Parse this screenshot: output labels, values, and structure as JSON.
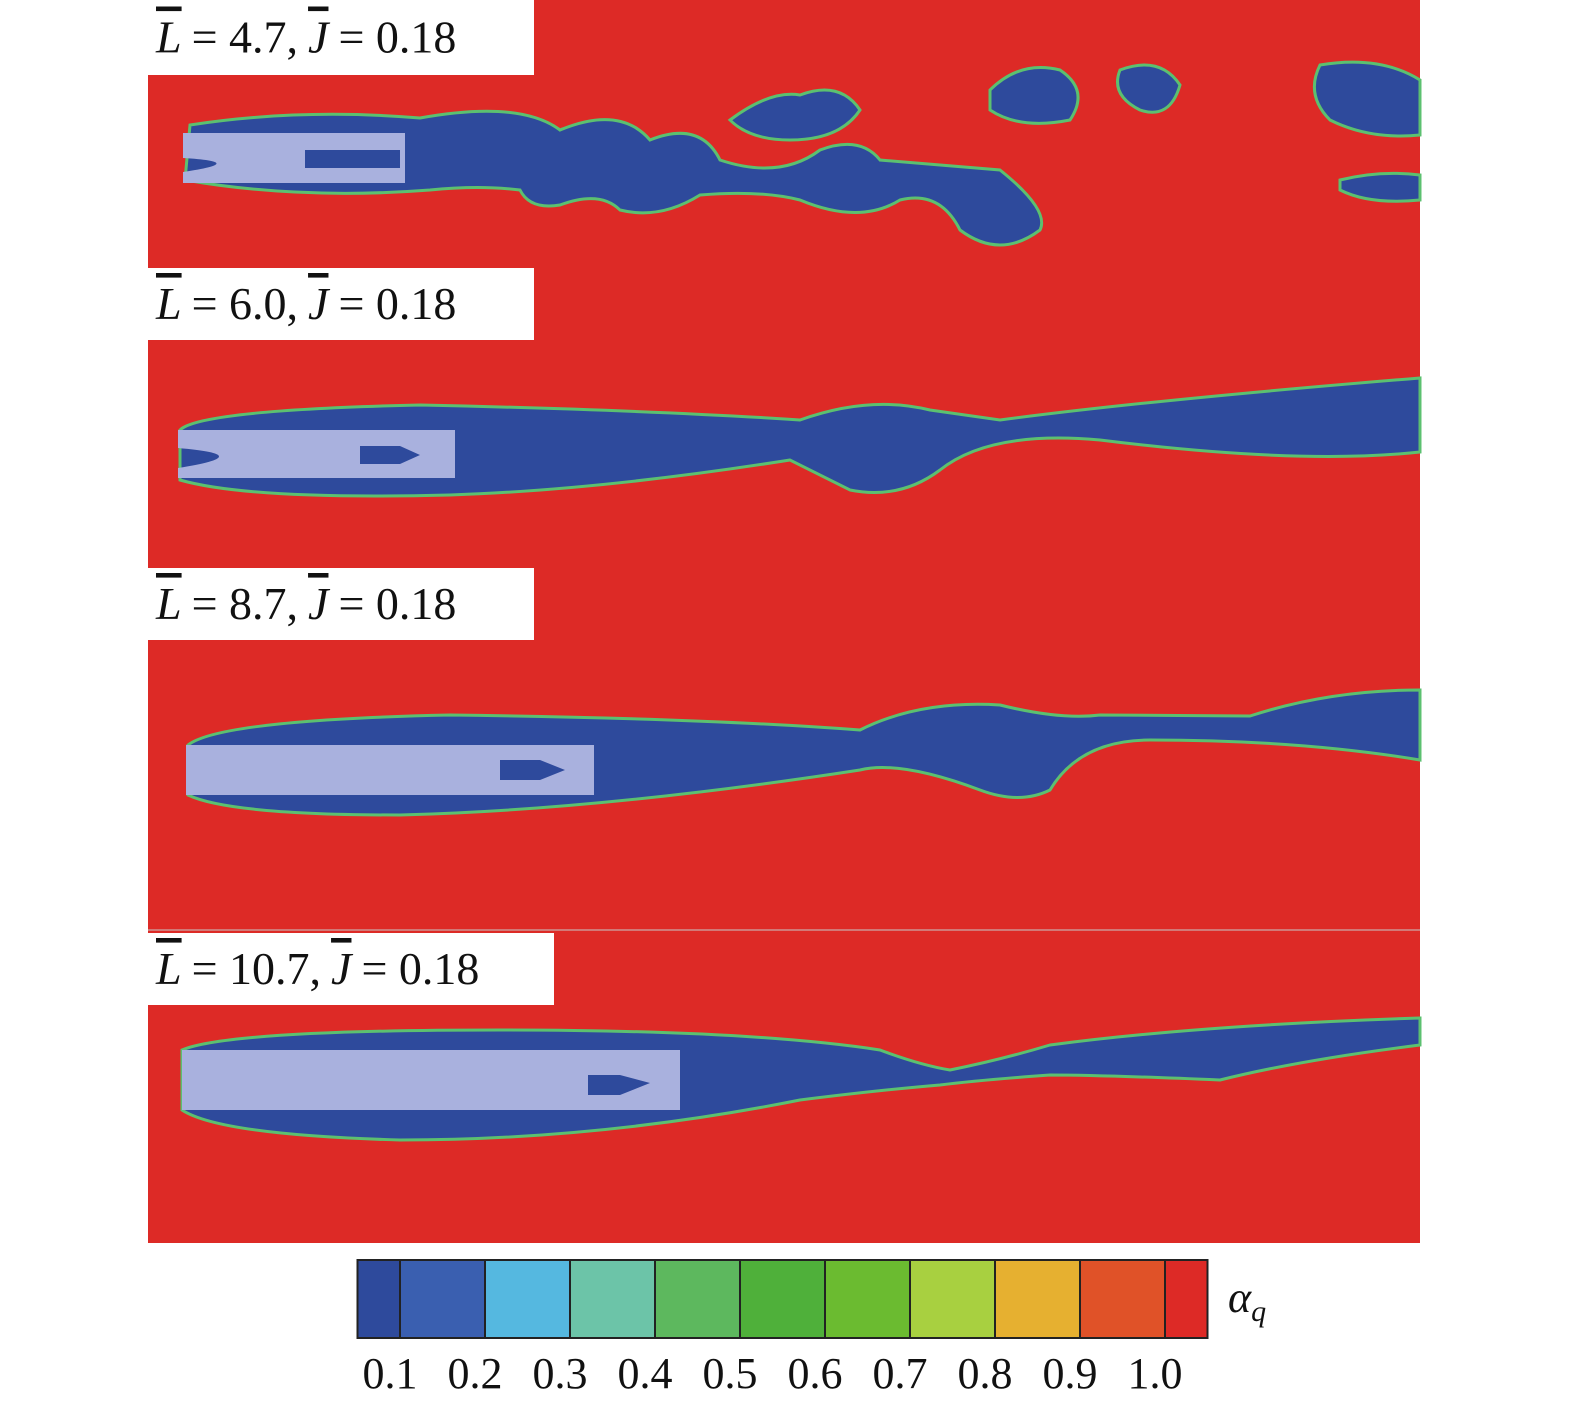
{
  "panels": [
    {
      "L": "L",
      "L_text": "= 4.7,",
      "J": "J",
      "J_text": "= 0.18"
    },
    {
      "L": "L",
      "L_text": "= 6.0,",
      "J": "J",
      "J_text": "= 0.18"
    },
    {
      "L": "L",
      "L_text": "= 8.7,",
      "J": "J",
      "J_text": "= 0.18"
    },
    {
      "L": "L",
      "L_text": "= 10.7,",
      "J": "J",
      "J_text": "= 0.18"
    }
  ],
  "colorbar": {
    "symbol": "α",
    "subscript": "q",
    "colors": [
      "#2e4a9c",
      "#3a5fb0",
      "#55b8e0",
      "#6cc4a8",
      "#5db85e",
      "#4fb03a",
      "#6bbb30",
      "#a8d040",
      "#e6b030",
      "#e05228",
      "#dd2a26"
    ],
    "ticks": [
      0.1,
      0.2,
      0.3,
      0.4,
      0.5,
      0.6,
      0.7,
      0.8,
      0.9,
      {
        "value": 1.0,
        "label": "1.0"
      }
    ],
    "lim": [
      0.1,
      1.0
    ]
  }
}
